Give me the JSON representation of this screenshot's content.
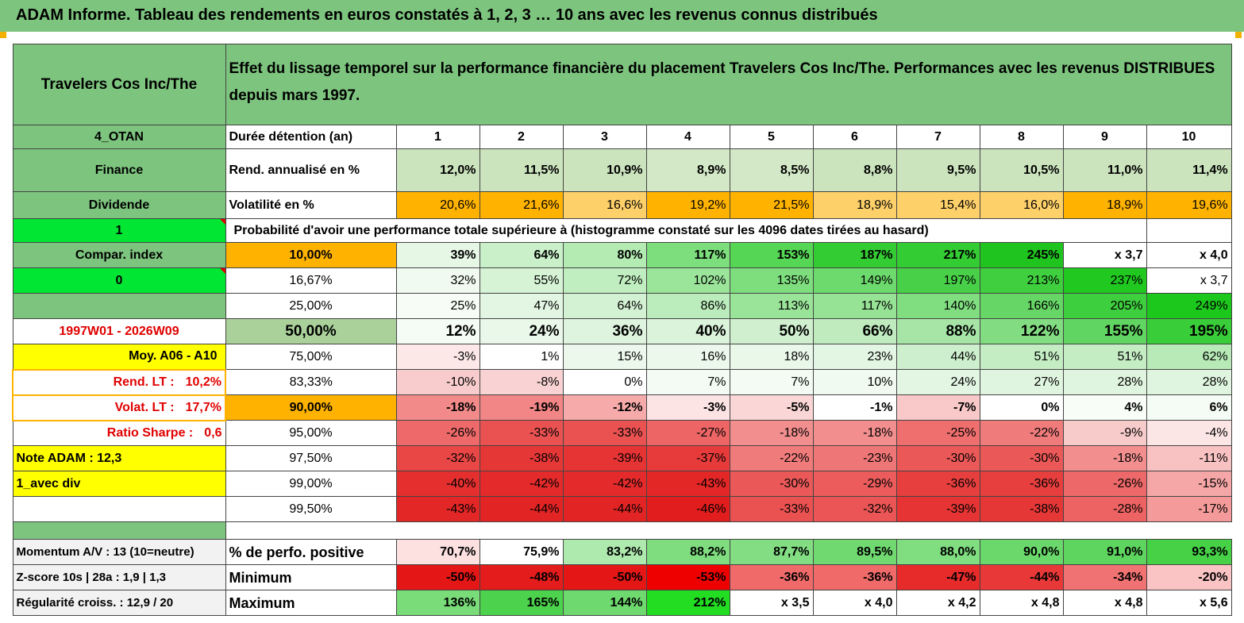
{
  "title": "ADAM Informe. Tableau des rendements en euros constatés à 1, 2, 3 … 10 ans avec les revenus connus distribués",
  "header": {
    "company": "Travelers Cos Inc/The",
    "description": "Effet du lissage temporel sur la performance financière du placement Travelers Cos Inc/The. Performances avec les revenus DISTRIBUES depuis mars 1997."
  },
  "rows_top": {
    "duration": {
      "side": "4_OTAN",
      "label": "Durée détention (an)",
      "values": [
        "1",
        "2",
        "3",
        "4",
        "5",
        "6",
        "7",
        "8",
        "9",
        "10"
      ]
    },
    "annual": {
      "side": "Finance",
      "label": "Rend. annualisé en %",
      "values": [
        "12,0%",
        "11,5%",
        "10,9%",
        "8,9%",
        "8,5%",
        "8,8%",
        "9,5%",
        "10,5%",
        "11,0%",
        "11,4%"
      ],
      "colors": [
        "#cbe4bd",
        "#cbe4bd",
        "#cbe4bd",
        "#d3e8c6",
        "#d3e8c6",
        "#cbe4bd",
        "#cbe4bd",
        "#cbe4bd",
        "#cbe4bd",
        "#cbe4bd"
      ]
    },
    "vol": {
      "side": "Dividende",
      "label": "Volatilité en %",
      "values": [
        "20,6%",
        "21,6%",
        "16,6%",
        "19,2%",
        "21,5%",
        "18,9%",
        "15,4%",
        "16,0%",
        "18,9%",
        "19,6%"
      ],
      "colors": [
        "#ffb300",
        "#ffb300",
        "#fed06a",
        "#ffb300",
        "#ffb300",
        "#fed06a",
        "#fed06a",
        "#fed06a",
        "#ffb300",
        "#ffb300"
      ]
    }
  },
  "prob_row": {
    "side": "1",
    "label": "Probabilité d'avoir une performance totale supérieure à (histogramme constaté sur les 4096 dates tirées au hasard)"
  },
  "prob_rows": [
    {
      "side": "Compar. index",
      "side_style": "lab",
      "pct": "10,00%",
      "pct_bg": "#ffb300",
      "bold": true,
      "big": false,
      "side_color": "",
      "values": [
        "39%",
        "64%",
        "80%",
        "117%",
        "153%",
        "187%",
        "217%",
        "245%",
        "x 3,7",
        "x 4,0"
      ],
      "colors": [
        "#e6f7e6",
        "#c9f0c9",
        "#b3ebb3",
        "#7dde7d",
        "#55d655",
        "#33cc33",
        "#33cc33",
        "#1fc41f",
        "#ffffff",
        "#ffffff"
      ]
    },
    {
      "side": "0",
      "side_style": "lime",
      "pct": "16,67%",
      "pct_bg": "#ffffff",
      "bold": false,
      "big": false,
      "side_color": "",
      "values": [
        "32%",
        "55%",
        "72%",
        "102%",
        "135%",
        "149%",
        "197%",
        "213%",
        "237%",
        "x 3,7"
      ],
      "colors": [
        "#f0faf0",
        "#d6f3d6",
        "#c0eec0",
        "#9be59b",
        "#7ede7e",
        "#6cda6c",
        "#48d148",
        "#3fcf3f",
        "#20c820",
        "#ffffff"
      ]
    },
    {
      "side": "",
      "side_style": "lab",
      "pct": "25,00%",
      "pct_bg": "#ffffff",
      "bold": false,
      "big": false,
      "side_color": "",
      "values": [
        "25%",
        "47%",
        "64%",
        "86%",
        "113%",
        "117%",
        "140%",
        "166%",
        "205%",
        "249%"
      ],
      "colors": [
        "#f7fcf7",
        "#e3f6e3",
        "#d3f1d3",
        "#bbecbb",
        "#9ae49a",
        "#96e396",
        "#80de80",
        "#66d766",
        "#3ecf3e",
        "#1dc81d"
      ]
    },
    {
      "side": "1997W01 - 2026W09",
      "side_style": "redtxt",
      "pct": "50,00%",
      "pct_bg": "#aad19a",
      "bold": true,
      "big": true,
      "side_color": "",
      "values": [
        "12%",
        "24%",
        "36%",
        "40%",
        "50%",
        "66%",
        "88%",
        "122%",
        "155%",
        "195%"
      ],
      "colors": [
        "#f5fcf5",
        "#eaf8ea",
        "#dff4df",
        "#daf3da",
        "#cfefcf",
        "#bfebbf",
        "#a7e5a7",
        "#82dd82",
        "#61d561",
        "#39cd39"
      ]
    },
    {
      "side": "Moy. A06 - A10",
      "side_style": "yel",
      "pct": "75,00%",
      "pct_bg": "#ffffff",
      "bold": false,
      "big": false,
      "side_color": "",
      "values": [
        "-3%",
        "1%",
        "15%",
        "16%",
        "18%",
        "23%",
        "44%",
        "51%",
        "51%",
        "62%"
      ],
      "colors": [
        "#fde8e8",
        "#ffffff",
        "#ecf8ec",
        "#ebf8eb",
        "#e9f8e9",
        "#e3f6e3",
        "#cdefcd",
        "#c4edc4",
        "#c4edc4",
        "#b7eab7"
      ]
    },
    {
      "side": "Rend. LT :",
      "side_val": "10,2%",
      "side_style": "redlab",
      "pct": "83,33%",
      "pct_bg": "#ffffff",
      "bold": false,
      "big": false,
      "side_color": "",
      "values": [
        "-10%",
        "-8%",
        "0%",
        "7%",
        "7%",
        "10%",
        "24%",
        "27%",
        "28%",
        "28%"
      ],
      "colors": [
        "#f8cccc",
        "#f9d3d3",
        "#ffffff",
        "#f4fbf4",
        "#f4fbf4",
        "#f0faf0",
        "#e3f6e3",
        "#e0f5e0",
        "#dff5df",
        "#dff5df"
      ]
    },
    {
      "side": "Volat. LT :",
      "side_val": "17,7%",
      "side_style": "redlab",
      "pct": "90,00%",
      "pct_bg": "#ffb300",
      "bold": true,
      "big": false,
      "side_color": "",
      "values": [
        "-18%",
        "-19%",
        "-12%",
        "-3%",
        "-5%",
        "-1%",
        "-7%",
        "0%",
        "4%",
        "6%"
      ],
      "colors": [
        "#f28a8a",
        "#f28585",
        "#f6aaaa",
        "#fde4e4",
        "#fbd6d6",
        "#ffffff",
        "#f9c8c8",
        "#ffffff",
        "#f8fdf8",
        "#f5fcf5"
      ]
    },
    {
      "side": "Ratio Sharpe :",
      "side_val": "0,6",
      "side_style": "redlab-w",
      "pct": "95,00%",
      "pct_bg": "#ffffff",
      "bold": false,
      "big": false,
      "side_color": "",
      "values": [
        "-26%",
        "-33%",
        "-33%",
        "-27%",
        "-18%",
        "-18%",
        "-25%",
        "-22%",
        "-9%",
        "-4%"
      ],
      "colors": [
        "#ee6969",
        "#ea5151",
        "#ea5151",
        "#ee6565",
        "#f28e8e",
        "#f28e8e",
        "#ef6e6e",
        "#f07b7b",
        "#f8cbcb",
        "#fce5e5"
      ]
    },
    {
      "side": "Note ADAM : 12,3",
      "side_style": "yel-l",
      "pct": "97,50%",
      "pct_bg": "#ffffff",
      "bold": false,
      "big": false,
      "side_color": "",
      "values": [
        "-32%",
        "-38%",
        "-39%",
        "-37%",
        "-22%",
        "-23%",
        "-30%",
        "-30%",
        "-18%",
        "-11%"
      ],
      "colors": [
        "#e94646",
        "#e63737",
        "#e63434",
        "#e73b3b",
        "#f07b7b",
        "#ef7676",
        "#eb5858",
        "#eb5858",
        "#f28e8e",
        "#f8c2c2"
      ]
    },
    {
      "side": "1_avec div",
      "side_style": "yel-l",
      "pct": "99,00%",
      "pct_bg": "#ffffff",
      "bold": false,
      "big": false,
      "side_color": "",
      "values": [
        "-40%",
        "-42%",
        "-42%",
        "-43%",
        "-30%",
        "-29%",
        "-36%",
        "-36%",
        "-26%",
        "-15%"
      ],
      "colors": [
        "#e52f2f",
        "#e42a2a",
        "#e42a2a",
        "#e32626",
        "#eb5858",
        "#ec5c5c",
        "#e73e3e",
        "#e73e3e",
        "#ed6868",
        "#f5a6a6"
      ]
    },
    {
      "side": "",
      "side_style": "white",
      "pct": "99,50%",
      "pct_bg": "#ffffff",
      "bold": false,
      "big": false,
      "side_color": "",
      "values": [
        "-43%",
        "-44%",
        "-44%",
        "-46%",
        "-33%",
        "-32%",
        "-39%",
        "-38%",
        "-28%",
        "-17%"
      ],
      "colors": [
        "#e32626",
        "#e32424",
        "#e32424",
        "#e21d1d",
        "#ea5151",
        "#eb5555",
        "#e63434",
        "#e63737",
        "#ed6262",
        "#f49a9a"
      ]
    }
  ],
  "bottom_rows": [
    {
      "side": "Momentum A/V : 13 (10=neutre)",
      "label": "% de perfo. positive",
      "values": [
        "70,7%",
        "75,9%",
        "83,2%",
        "88,2%",
        "87,7%",
        "89,5%",
        "88,0%",
        "90,0%",
        "91,0%",
        "93,3%"
      ],
      "colors": [
        "#fde0e0",
        "#ffffff",
        "#aee9ae",
        "#7fdd7f",
        "#83de83",
        "#70da70",
        "#80dd80",
        "#6ad86a",
        "#5ed55e",
        "#47d147"
      ]
    },
    {
      "side": "Z-score 10s | 28a : 1,9 | 1,3",
      "label": "Minimum",
      "values": [
        "-50%",
        "-48%",
        "-50%",
        "-53%",
        "-36%",
        "-36%",
        "-47%",
        "-44%",
        "-34%",
        "-20%"
      ],
      "colors": [
        "#e41616",
        "#e41c1c",
        "#e41616",
        "#ef0000",
        "#f06a6a",
        "#f06a6a",
        "#e72b2b",
        "#e93838",
        "#f17272",
        "#fbc4c4"
      ]
    },
    {
      "side": "Régularité croiss. : 12,9 / 20",
      "label": "Maximum",
      "values": [
        "136%",
        "165%",
        "144%",
        "212%",
        "x 3,5",
        "x 4,0",
        "x 4,2",
        "x 4,8",
        "x 4,8",
        "x 5,6"
      ],
      "colors": [
        "#79dc79",
        "#4cd24c",
        "#6ed96e",
        "#22dd22",
        "#ffffff",
        "#ffffff",
        "#ffffff",
        "#ffffff",
        "#ffffff",
        "#ffffff"
      ]
    }
  ]
}
